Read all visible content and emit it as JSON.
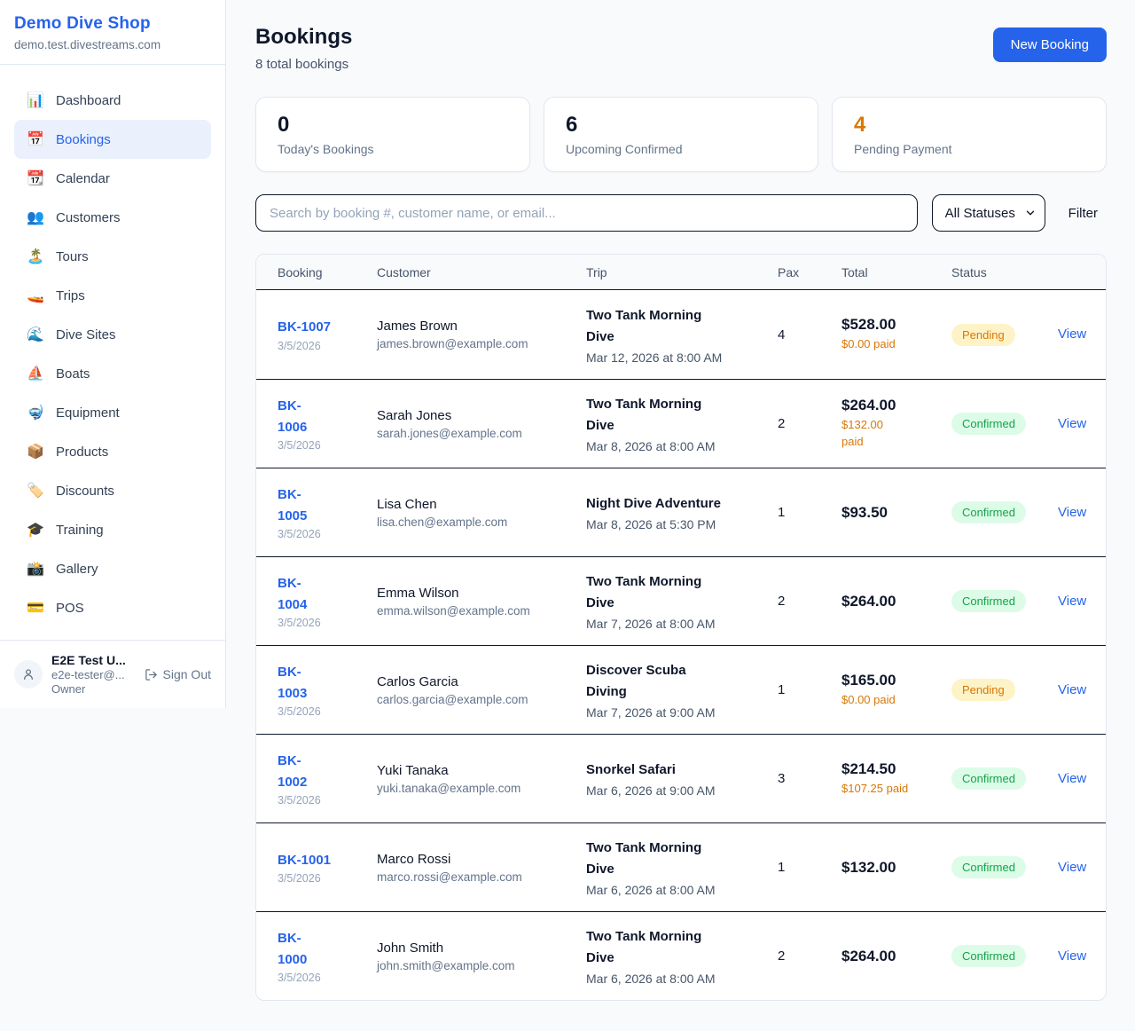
{
  "sidebar": {
    "brand": {
      "name": "Demo Dive Shop",
      "domain": "demo.test.divestreams.com"
    },
    "items": [
      {
        "icon": "📊",
        "icon_name": "dashboard-icon",
        "label": "Dashboard",
        "active": false
      },
      {
        "icon": "📅",
        "icon_name": "bookings-icon",
        "label": "Bookings",
        "active": true
      },
      {
        "icon": "📆",
        "icon_name": "calendar-icon",
        "label": "Calendar",
        "active": false
      },
      {
        "icon": "👥",
        "icon_name": "customers-icon",
        "label": "Customers",
        "active": false
      },
      {
        "icon": "🏝️",
        "icon_name": "tours-icon",
        "label": "Tours",
        "active": false
      },
      {
        "icon": "🚤",
        "icon_name": "trips-icon",
        "label": "Trips",
        "active": false
      },
      {
        "icon": "🌊",
        "icon_name": "dive-sites-icon",
        "label": "Dive Sites",
        "active": false
      },
      {
        "icon": "⛵",
        "icon_name": "boats-icon",
        "label": "Boats",
        "active": false
      },
      {
        "icon": "🤿",
        "icon_name": "equipment-icon",
        "label": "Equipment",
        "active": false
      },
      {
        "icon": "📦",
        "icon_name": "products-icon",
        "label": "Products",
        "active": false
      },
      {
        "icon": "🏷️",
        "icon_name": "discounts-icon",
        "label": "Discounts",
        "active": false
      },
      {
        "icon": "🎓",
        "icon_name": "training-icon",
        "label": "Training",
        "active": false
      },
      {
        "icon": "📸",
        "icon_name": "gallery-icon",
        "label": "Gallery",
        "active": false
      },
      {
        "icon": "💳",
        "icon_name": "pos-icon",
        "label": "POS",
        "active": false
      }
    ],
    "user": {
      "name": "E2E Test U...",
      "email": "e2e-tester@...",
      "role": "Owner",
      "sign_out_label": "Sign Out"
    }
  },
  "header": {
    "title": "Bookings",
    "subtitle": "8 total bookings",
    "new_booking_label": "New Booking"
  },
  "stats": [
    {
      "value": "0",
      "label": "Today's Bookings",
      "value_color": "#0f172a"
    },
    {
      "value": "6",
      "label": "Upcoming Confirmed",
      "value_color": "#0f172a"
    },
    {
      "value": "4",
      "label": "Pending Payment",
      "value_color": "#d97706"
    }
  ],
  "filters": {
    "search_placeholder": "Search by booking #, customer name, or email...",
    "status_selected": "All Statuses",
    "filter_label": "Filter"
  },
  "table": {
    "headers": [
      "Booking",
      "Customer",
      "Trip",
      "Pax",
      "Total",
      "Status"
    ],
    "view_label": "View",
    "rows": [
      {
        "id_lines": [
          "BK-1007"
        ],
        "date": "3/5/2026",
        "customer": "James Brown",
        "email": "james.brown@example.com",
        "trip_lines": [
          "Two Tank Morning",
          "Dive"
        ],
        "trip_when": "Mar 12, 2026 at 8:00 AM",
        "pax": "4",
        "total": "$528.00",
        "paid_lines": [
          "$0.00 paid"
        ],
        "status": "Pending"
      },
      {
        "id_lines": [
          "BK-",
          "1006"
        ],
        "date": "3/5/2026",
        "customer": "Sarah Jones",
        "email": "sarah.jones@example.com",
        "trip_lines": [
          "Two Tank Morning",
          "Dive"
        ],
        "trip_when": "Mar 8, 2026 at 8:00 AM",
        "pax": "2",
        "total": "$264.00",
        "paid_lines": [
          "$132.00",
          "paid"
        ],
        "status": "Confirmed"
      },
      {
        "id_lines": [
          "BK-",
          "1005"
        ],
        "date": "3/5/2026",
        "customer": "Lisa Chen",
        "email": "lisa.chen@example.com",
        "trip_lines": [
          "Night Dive Adventure"
        ],
        "trip_when": "Mar 8, 2026 at 5:30 PM",
        "pax": "1",
        "total": "$93.50",
        "paid_lines": null,
        "status": "Confirmed"
      },
      {
        "id_lines": [
          "BK-",
          "1004"
        ],
        "date": "3/5/2026",
        "customer": "Emma Wilson",
        "email": "emma.wilson@example.com",
        "trip_lines": [
          "Two Tank Morning",
          "Dive"
        ],
        "trip_when": "Mar 7, 2026 at 8:00 AM",
        "pax": "2",
        "total": "$264.00",
        "paid_lines": null,
        "status": "Confirmed"
      },
      {
        "id_lines": [
          "BK-",
          "1003"
        ],
        "date": "3/5/2026",
        "customer": "Carlos Garcia",
        "email": "carlos.garcia@example.com",
        "trip_lines": [
          "Discover Scuba",
          "Diving"
        ],
        "trip_when": "Mar 7, 2026 at 9:00 AM",
        "pax": "1",
        "total": "$165.00",
        "paid_lines": [
          "$0.00 paid"
        ],
        "status": "Pending"
      },
      {
        "id_lines": [
          "BK-",
          "1002"
        ],
        "date": "3/5/2026",
        "customer": "Yuki Tanaka",
        "email": "yuki.tanaka@example.com",
        "trip_lines": [
          "Snorkel Safari"
        ],
        "trip_when": "Mar 6, 2026 at 9:00 AM",
        "pax": "3",
        "total": "$214.50",
        "paid_lines": [
          "$107.25 paid"
        ],
        "status": "Confirmed"
      },
      {
        "id_lines": [
          "BK-1001"
        ],
        "date": "3/5/2026",
        "customer": "Marco Rossi",
        "email": "marco.rossi@example.com",
        "trip_lines": [
          "Two Tank Morning",
          "Dive"
        ],
        "trip_when": "Mar 6, 2026 at 8:00 AM",
        "pax": "1",
        "total": "$132.00",
        "paid_lines": null,
        "status": "Confirmed"
      },
      {
        "id_lines": [
          "BK-",
          "1000"
        ],
        "date": "3/5/2026",
        "customer": "John Smith",
        "email": "john.smith@example.com",
        "trip_lines": [
          "Two Tank Morning",
          "Dive"
        ],
        "trip_when": "Mar 6, 2026 at 8:00 AM",
        "pax": "2",
        "total": "$264.00",
        "paid_lines": null,
        "status": "Confirmed"
      }
    ]
  },
  "colors": {
    "accent": "#2563eb",
    "pending_bg": "#fef3c7",
    "pending_text": "#d97706",
    "confirmed_bg": "#dcfce7",
    "confirmed_text": "#16a34a"
  }
}
